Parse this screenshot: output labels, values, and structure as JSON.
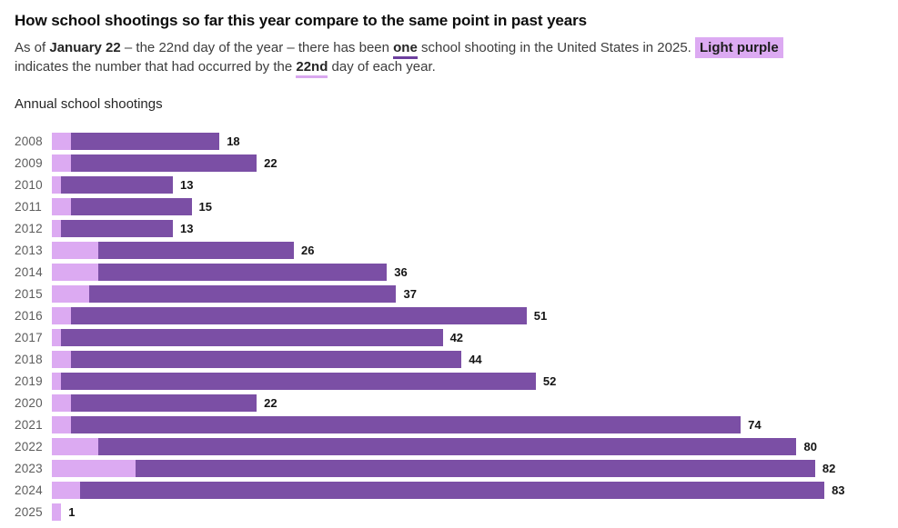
{
  "header": {
    "title": "How school shootings so far this year compare to the same point in past years",
    "subtitle": {
      "seg1": "As of ",
      "seg2": "January 22",
      "seg3": " – the 22nd day of the year – there has been ",
      "seg4": "one",
      "seg5": " school shooting in the United States in 2025. ",
      "seg6": "Light purple",
      "seg7": "indicates the number that had occurred by the ",
      "seg8": "22nd",
      "seg9": " day of each year."
    }
  },
  "chart_header": "Annual school shootings",
  "colors": {
    "dark_purple": "#7b4fa5",
    "light_purple": "#dcaaf2",
    "underline_dark": "#6d3f9e",
    "underline_light": "#d9a7ef"
  },
  "chart_data": {
    "type": "bar",
    "orientation": "horizontal",
    "title": "Annual school shootings",
    "categories": [
      "2008",
      "2009",
      "2010",
      "2011",
      "2012",
      "2013",
      "2014",
      "2015",
      "2016",
      "2017",
      "2018",
      "2019",
      "2020",
      "2021",
      "2022",
      "2023",
      "2024",
      "2025"
    ],
    "series": [
      {
        "name": "Shootings by the 22nd day of the year (light purple)",
        "values": [
          2,
          2,
          1,
          2,
          1,
          5,
          5,
          4,
          2,
          1,
          2,
          1,
          2,
          2,
          5,
          9,
          3,
          1
        ]
      },
      {
        "name": "Annual total school shootings (dark purple)",
        "values": [
          18,
          22,
          13,
          15,
          13,
          26,
          36,
          37,
          51,
          42,
          44,
          52,
          22,
          74,
          80,
          82,
          83,
          1
        ]
      }
    ],
    "value_labels": [
      18,
      22,
      13,
      15,
      13,
      26,
      36,
      37,
      51,
      42,
      44,
      52,
      22,
      74,
      80,
      82,
      83,
      1
    ],
    "xlim": [
      0,
      83
    ],
    "grid": false,
    "legend": "none"
  }
}
